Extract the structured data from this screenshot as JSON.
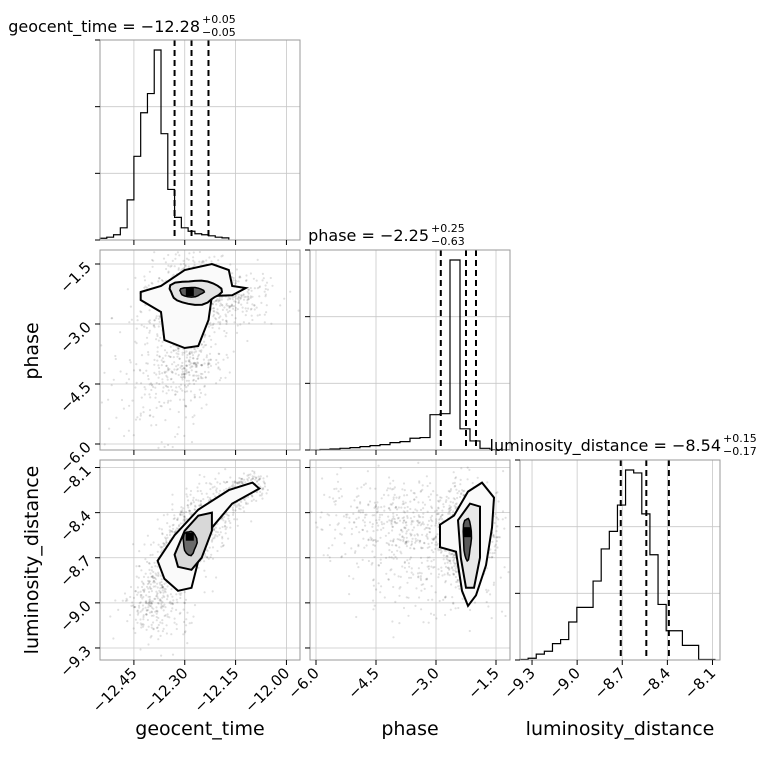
{
  "chart_data": {
    "type": "corner",
    "parameters": [
      "geocent_time",
      "phase",
      "luminosity_distance"
    ],
    "panel_titles": [
      {
        "param": "geocent_time",
        "text": "geocent_time = −12.28",
        "plus": "+0.05",
        "minus": "−0.05"
      },
      {
        "param": "phase",
        "text": "phase = −2.25",
        "plus": "+0.25",
        "minus": "−0.63"
      },
      {
        "param": "luminosity_distance",
        "text": "luminosity_distance = −8.54",
        "plus": "+0.15",
        "minus": "−0.17"
      }
    ],
    "axis_labels": {
      "x": [
        "geocent_time",
        "phase",
        "luminosity_distance"
      ],
      "y": [
        "phase",
        "luminosity_distance"
      ]
    },
    "ranges": {
      "geocent_time": [
        -12.55,
        -11.96
      ],
      "phase": [
        -6.15,
        -1.15
      ],
      "luminosity_distance": [
        -9.38,
        -8.05
      ]
    },
    "ticks": {
      "geocent_time": {
        "values": [
          -12.45,
          -12.3,
          -12.15,
          -12.0
        ],
        "labels": [
          "−12.45",
          "−12.30",
          "−12.15",
          "−12.00"
        ]
      },
      "phase": {
        "values": [
          -6.0,
          -4.5,
          -3.0,
          -1.5
        ],
        "labels": [
          "−6.0",
          "−4.5",
          "−3.0",
          "−1.5"
        ]
      },
      "luminosity_distance": {
        "values": [
          -9.3,
          -9.0,
          -8.7,
          -8.4,
          -8.1
        ],
        "labels": [
          "−9.3",
          "−9.0",
          "−8.7",
          "−8.4",
          "−8.1"
        ]
      }
    },
    "quantiles": {
      "geocent_time": [
        -12.33,
        -12.28,
        -12.23
      ],
      "phase": [
        -2.88,
        -2.25,
        -2.0
      ],
      "luminosity_distance": [
        -8.71,
        -8.54,
        -8.39
      ]
    },
    "histograms": {
      "geocent_time": {
        "edges_start": -12.55,
        "bin_width": 0.02,
        "counts": [
          0.5,
          0.8,
          1.5,
          3.5,
          11.5,
          24,
          36.5,
          42,
          54.5,
          30.5,
          14.5,
          6.5,
          3.5,
          2.5,
          1.8,
          1.5,
          1.2,
          0.8,
          0.6
        ]
      },
      "phase": {
        "edges_start": -6.15,
        "bin_width": 0.25,
        "counts": [
          0,
          0.15,
          0.3,
          0.5,
          0.7,
          1.0,
          1.3,
          1.6,
          2.2,
          2.5,
          3.5,
          3.7,
          10.5,
          10.8,
          56.5,
          6.3,
          2.7,
          0.5,
          0.1,
          0.05
        ]
      },
      "luminosity_distance": {
        "edges_start": -9.38,
        "bin_width": 0.054,
        "counts": [
          0.1,
          0.3,
          1,
          1.5,
          2.8,
          3.5,
          6.5,
          9,
          9,
          13.5,
          19,
          22,
          26.5,
          32.5,
          32,
          25,
          18,
          9.5,
          5,
          5,
          2.5,
          2.5,
          0.1,
          0.1
        ]
      }
    },
    "grid": true,
    "contour_levels": [
      "0.39",
      "0.86",
      "0.99"
    ]
  }
}
